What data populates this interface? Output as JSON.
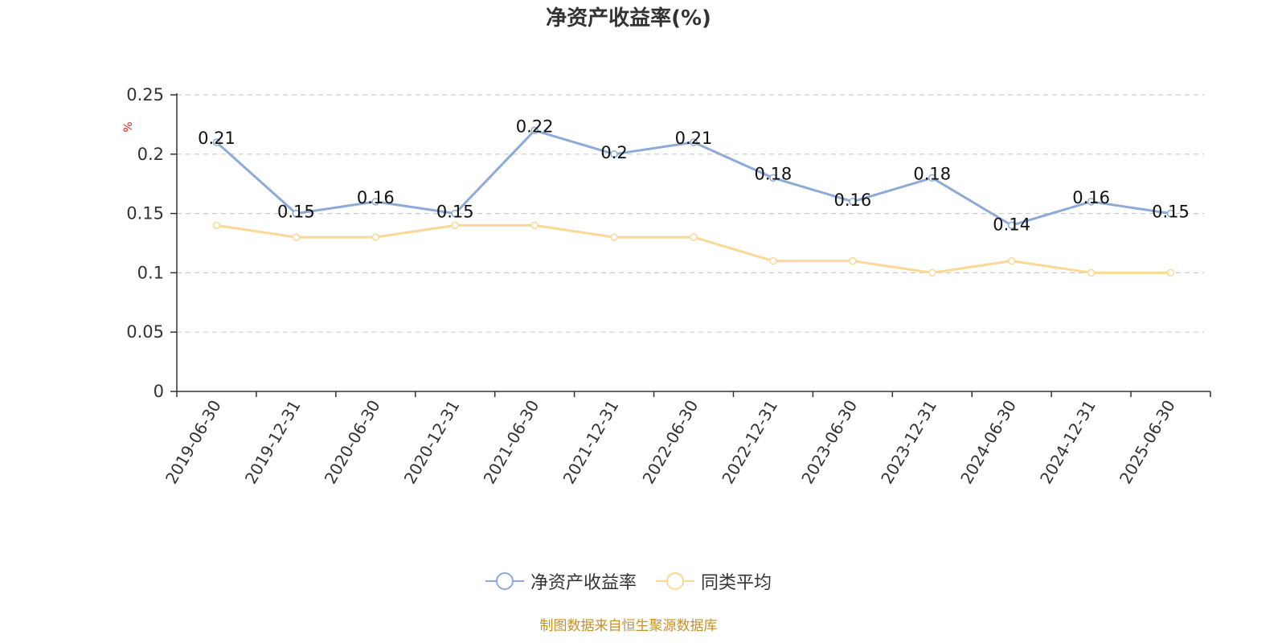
{
  "chart_data": {
    "type": "line",
    "title": "净资产收益率(%)",
    "ylabel": "%",
    "xlabel": "",
    "categories": [
      "2019-06-30",
      "2019-12-31",
      "2020-06-30",
      "2020-12-31",
      "2021-06-30",
      "2021-12-31",
      "2022-06-30",
      "2022-12-31",
      "2023-06-30",
      "2023-12-31",
      "2024-06-30",
      "2024-12-31",
      "2025-06-30"
    ],
    "series": [
      {
        "name": "净资产收益率",
        "color": "#8eaad8",
        "values": [
          0.21,
          0.15,
          0.16,
          0.15,
          0.22,
          0.2,
          0.21,
          0.18,
          0.16,
          0.18,
          0.14,
          0.16,
          0.15
        ],
        "data_labels": true
      },
      {
        "name": "同类平均",
        "color": "#fbd896",
        "values": [
          0.14,
          0.13,
          0.13,
          0.14,
          0.14,
          0.13,
          0.13,
          0.11,
          0.11,
          0.1,
          0.11,
          0.1,
          0.1
        ],
        "data_labels": false
      }
    ],
    "ylim": [
      0,
      0.25
    ],
    "yticks": [
      "0",
      "0.05",
      "0.1",
      "0.15",
      "0.2",
      "0.25"
    ],
    "grid": true,
    "legend_position": "bottom"
  },
  "source": "制图数据来自恒生聚源数据库"
}
